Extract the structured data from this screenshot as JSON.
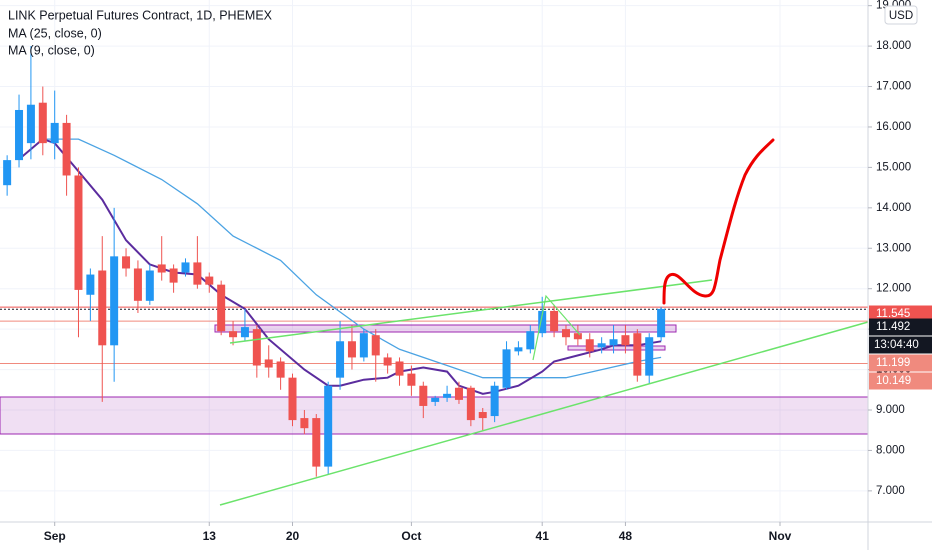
{
  "chart_data": {
    "type": "candlestick",
    "title": "LINK Perpetual Futures Contract, 1D, PHEMEX",
    "currency": "USD",
    "countdown": "13:04:40",
    "up_color": "#2196f3",
    "down_color": "#ef5350",
    "x": [
      -4,
      -3,
      -2,
      -1,
      0,
      1,
      2,
      3,
      4,
      5,
      6,
      7,
      8,
      9,
      10,
      11,
      12,
      13,
      14,
      15,
      16,
      17,
      18,
      19,
      20,
      21,
      22,
      23,
      24,
      25,
      26,
      27,
      28,
      29,
      30,
      31,
      32,
      33,
      34,
      35,
      36,
      37,
      38,
      39,
      40,
      41,
      42,
      43,
      44,
      45,
      46,
      47,
      48,
      49,
      50,
      51
    ],
    "open": [
      14.56,
      15.18,
      15.6,
      16.6,
      15.6,
      16.1,
      14.8,
      11.85,
      12.45,
      10.6,
      12.8,
      12.5,
      11.7,
      12.6,
      12.5,
      12.4,
      12.65,
      12.3,
      12.1,
      10.95,
      10.8,
      11.0,
      10.25,
      10.2,
      9.8,
      8.8,
      8.8,
      7.6,
      9.8,
      10.7,
      10.3,
      10.85,
      10.3,
      10.2,
      9.9,
      9.6,
      9.2,
      9.3,
      9.55,
      9.55,
      8.95,
      8.85,
      9.55,
      10.45,
      10.5,
      10.9,
      11.45,
      11.0,
      10.9,
      10.75,
      10.55,
      10.6,
      10.85,
      10.9,
      9.85,
      10.8
    ],
    "high": [
      15.3,
      16.8,
      18.0,
      17.0,
      16.9,
      16.3,
      15.0,
      12.5,
      13.3,
      14.0,
      13.0,
      12.7,
      12.6,
      13.3,
      12.6,
      12.75,
      13.3,
      12.4,
      12.2,
      11.2,
      11.5,
      11.1,
      10.6,
      10.3,
      9.9,
      9.0,
      8.9,
      9.7,
      11.2,
      11.1,
      11.0,
      11.0,
      10.4,
      10.3,
      10.1,
      9.7,
      9.35,
      9.6,
      9.7,
      9.6,
      9.05,
      9.7,
      10.7,
      10.7,
      11.1,
      11.8,
      11.6,
      11.1,
      11.1,
      10.9,
      10.8,
      11.1,
      11.1,
      11.0,
      10.9,
      11.55
    ],
    "low": [
      14.3,
      15.0,
      15.2,
      15.3,
      15.2,
      14.3,
      10.8,
      11.2,
      9.2,
      9.7,
      12.3,
      11.4,
      11.6,
      12.2,
      11.9,
      12.3,
      12.0,
      11.9,
      10.85,
      10.6,
      10.7,
      9.8,
      9.8,
      9.5,
      8.6,
      8.4,
      7.35,
      7.4,
      9.5,
      10.0,
      10.2,
      9.7,
      9.9,
      9.6,
      9.35,
      8.8,
      9.1,
      9.2,
      9.15,
      8.6,
      8.5,
      8.7,
      9.5,
      10.35,
      10.4,
      10.8,
      10.8,
      10.6,
      10.6,
      10.3,
      10.4,
      10.4,
      10.4,
      9.7,
      9.65,
      10.7
    ],
    "close": [
      15.18,
      16.42,
      16.55,
      15.6,
      16.1,
      14.8,
      11.97,
      12.35,
      10.6,
      12.8,
      12.5,
      11.7,
      12.45,
      12.4,
      12.15,
      12.65,
      12.1,
      12.1,
      10.95,
      10.8,
      11.05,
      10.1,
      10.05,
      9.8,
      8.75,
      8.55,
      7.6,
      9.6,
      10.7,
      10.3,
      10.9,
      10.35,
      10.1,
      9.85,
      9.6,
      9.1,
      9.3,
      9.4,
      9.25,
      8.75,
      8.8,
      9.6,
      10.5,
      10.55,
      10.95,
      11.45,
      10.95,
      10.8,
      10.75,
      10.45,
      10.65,
      10.75,
      10.6,
      9.85,
      10.8,
      11.5
    ],
    "lines": [
      {
        "name": "MA (25, close, 0)",
        "color": "#4ba3e3",
        "x": [
          -1,
          2,
          5,
          9,
          12,
          15,
          19,
          22,
          26,
          29,
          33,
          36,
          39,
          43,
          46,
          49,
          51
        ],
        "values": [
          15.7,
          15.7,
          15.3,
          14.7,
          14.1,
          13.3,
          12.7,
          11.85,
          11.0,
          10.5,
          10.1,
          9.8,
          9.8,
          9.8,
          10.0,
          10.2,
          10.3
        ]
      },
      {
        "name": "MA (9, close, 0)",
        "color": "#5b2c9e",
        "x": [
          -3,
          -1,
          0,
          2,
          4,
          6,
          8,
          10,
          12,
          14,
          16,
          18,
          21,
          23,
          24,
          26,
          28,
          29,
          31,
          33,
          34,
          36,
          37,
          39,
          41,
          42,
          44,
          46,
          47,
          49,
          51
        ],
        "values": [
          15.2,
          15.7,
          15.6,
          14.9,
          14.2,
          13.2,
          12.6,
          12.4,
          12.35,
          11.85,
          11.5,
          10.75,
          10.0,
          9.6,
          9.6,
          9.75,
          9.8,
          9.95,
          10.05,
          9.95,
          9.6,
          9.4,
          9.45,
          9.6,
          9.95,
          10.2,
          10.35,
          10.5,
          10.6,
          10.6,
          10.7
        ]
      }
    ],
    "price_levels": [
      {
        "value": 11.545,
        "color": "#ef5350"
      },
      {
        "value": 11.492,
        "color": "#131722"
      },
      {
        "value": 11.199,
        "color": "#f08a7e"
      },
      {
        "value": 10.149,
        "color": "#f08a7e"
      }
    ],
    "xlim": [
      -4.6,
      68.4
    ],
    "xticks": [
      {
        "value": 0,
        "label": "Sep"
      },
      13,
      20,
      {
        "value": 30,
        "label": "Oct"
      },
      41,
      48,
      {
        "value": 61,
        "label": "Nov"
      }
    ],
    "ylim": [
      6.23,
      19.14
    ],
    "yticks": [
      {
        "value": 7,
        "label": "7.000"
      },
      {
        "value": 8,
        "label": "8.000"
      },
      {
        "value": 9,
        "label": "9.000"
      },
      {
        "value": 10,
        "label": "10.000"
      },
      {
        "value": 11,
        "label": "11.000"
      },
      {
        "value": 12,
        "label": "12.000"
      },
      {
        "value": 13,
        "label": "13.000"
      },
      {
        "value": 14,
        "label": "14.000"
      },
      {
        "value": 15,
        "label": "15.000"
      },
      {
        "value": 16,
        "label": "16.000"
      },
      {
        "value": 17,
        "label": "17.000"
      },
      {
        "value": 18,
        "label": "18.000"
      },
      {
        "value": 19,
        "label": "19.000"
      }
    ],
    "grid": true
  }
}
